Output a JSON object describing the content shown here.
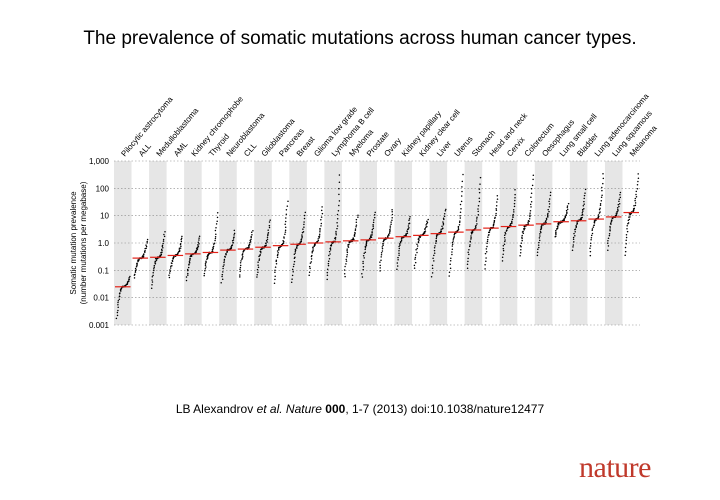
{
  "title": "The prevalence of somatic mutations across human cancer types.",
  "citation": {
    "authors": "LB Alexandrov",
    "etal": "et al.",
    "journal": "Nature",
    "volume": "000",
    "rest": ", 1-7 (2013) doi:10.1038/nature12477"
  },
  "logo": "nature",
  "colors": {
    "points": "#000000",
    "median": "#e32118",
    "band": "#e6e6e6",
    "grid": "#888888"
  },
  "chart_data": {
    "type": "scatter",
    "title": "The prevalence of somatic mutations across human cancer types.",
    "ylabel": "Somatic mutation prevalence",
    "ylabel2": "(number mutations per megabase)",
    "y_scale": "log",
    "ylim": [
      0.001,
      1000
    ],
    "yticks": [
      "0.001",
      "0.01",
      "0.1",
      "1.0",
      "10",
      "100",
      "1,000"
    ],
    "grid": "horizontal dotted",
    "categories": [
      {
        "label": "Pilocytic astrocytoma",
        "median": 0.025,
        "min": 0.0015,
        "max": 0.06
      },
      {
        "label": "ALL",
        "median": 0.28,
        "min": 0.05,
        "max": 1.5
      },
      {
        "label": "Medulloblastoma",
        "median": 0.3,
        "min": 0.02,
        "max": 3.0
      },
      {
        "label": "AML",
        "median": 0.35,
        "min": 0.05,
        "max": 2.0
      },
      {
        "label": "Kidney chromophobe",
        "median": 0.4,
        "min": 0.04,
        "max": 1.8
      },
      {
        "label": "Thyroid",
        "median": 0.45,
        "min": 0.06,
        "max": 15
      },
      {
        "label": "Neuroblastoma",
        "median": 0.55,
        "min": 0.03,
        "max": 3.0
      },
      {
        "label": "CLL",
        "median": 0.6,
        "min": 0.05,
        "max": 3.0
      },
      {
        "label": "Glioblastoma",
        "median": 0.7,
        "min": 0.05,
        "max": 8
      },
      {
        "label": "Pancreas",
        "median": 0.8,
        "min": 0.03,
        "max": 40
      },
      {
        "label": "Breast",
        "median": 0.9,
        "min": 0.03,
        "max": 15
      },
      {
        "label": "Glioma low grade",
        "median": 1.0,
        "min": 0.06,
        "max": 25
      },
      {
        "label": "Lymphoma B cell",
        "median": 1.1,
        "min": 0.04,
        "max": 400
      },
      {
        "label": "Myeloma",
        "median": 1.2,
        "min": 0.05,
        "max": 12
      },
      {
        "label": "Prostate",
        "median": 1.3,
        "min": 0.05,
        "max": 15
      },
      {
        "label": "Ovary",
        "median": 1.5,
        "min": 0.08,
        "max": 20
      },
      {
        "label": "Kidney papillary",
        "median": 1.7,
        "min": 0.1,
        "max": 10
      },
      {
        "label": "Kidney clear cell",
        "median": 1.9,
        "min": 0.1,
        "max": 8
      },
      {
        "label": "Liver",
        "median": 2.2,
        "min": 0.05,
        "max": 20
      },
      {
        "label": "Uterus",
        "median": 2.5,
        "min": 0.05,
        "max": 400
      },
      {
        "label": "Stomach",
        "median": 3.0,
        "min": 0.1,
        "max": 300
      },
      {
        "label": "Head and neck",
        "median": 3.5,
        "min": 0.1,
        "max": 60
      },
      {
        "label": "Cervix",
        "median": 4.0,
        "min": 0.2,
        "max": 100
      },
      {
        "label": "Colorectum",
        "median": 4.5,
        "min": 0.3,
        "max": 400
      },
      {
        "label": "Oesophagus",
        "median": 5.0,
        "min": 0.3,
        "max": 80
      },
      {
        "label": "Lung small cell",
        "median": 6.0,
        "min": 1.5,
        "max": 30
      },
      {
        "label": "Bladder",
        "median": 6.5,
        "min": 0.5,
        "max": 100
      },
      {
        "label": "Lung adenocarcinoma",
        "median": 7.5,
        "min": 0.3,
        "max": 400
      },
      {
        "label": "Lung squamous",
        "median": 9.0,
        "min": 0.5,
        "max": 80
      },
      {
        "label": "Melanoma",
        "median": 13.0,
        "min": 0.3,
        "max": 400
      }
    ]
  }
}
